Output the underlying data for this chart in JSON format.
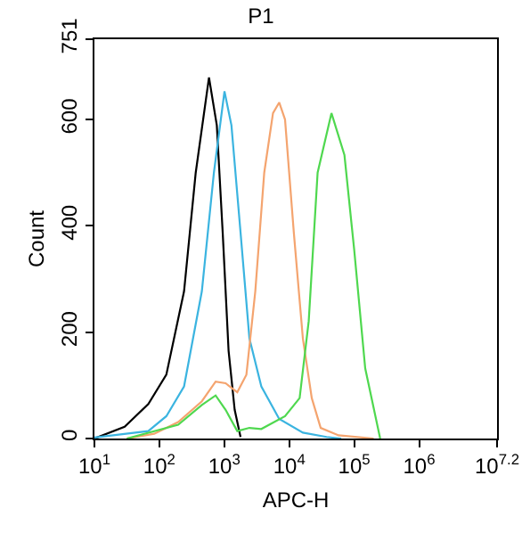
{
  "chart_data": {
    "type": "line",
    "title": "P1",
    "xlabel": "APC-H",
    "ylabel": "Count",
    "log": "x",
    "grid": false,
    "marker": "none",
    "line_style": "solid",
    "xlim": [
      10,
      15848932
    ],
    "xticks": [
      {
        "value": 10,
        "label": "10$^{1}$"
      },
      {
        "value": 100,
        "label": "10$^{2}$"
      },
      {
        "value": 1000,
        "label": "10$^{3}$"
      },
      {
        "value": 10000,
        "label": "10$^{4}$"
      },
      {
        "value": 100000,
        "label": "10$^{5}$"
      },
      {
        "value": 1000000,
        "label": "10$^{6}$"
      },
      {
        "value": 15848932,
        "label": "10$^{7.2}$"
      }
    ],
    "ylim": [
      0,
      751
    ],
    "yticks": [
      0,
      200,
      400,
      600,
      751
    ],
    "series": [
      {
        "color": "#000000",
        "x": [
          10,
          29.2,
          67.6,
          128,
          240,
          363,
          581,
          767,
          944,
          1164,
          1445,
          1778
        ],
        "values": [
          0,
          22,
          65,
          120,
          277,
          500,
          679,
          589,
          388,
          165,
          54,
          3
        ]
      },
      {
        "color": "#3bb4e0",
        "x": [
          10,
          67.6,
          128,
          240,
          451,
          692,
          1007,
          1288,
          1778,
          2438,
          3715,
          7000,
          16220,
          37580,
          63100
        ],
        "values": [
          2,
          14,
          42,
          98,
          277,
          500,
          653,
          589,
          388,
          188,
          98,
          37,
          11,
          3,
          0
        ]
      },
      {
        "color": "#f4a46f",
        "x": [
          31.6,
          83.2,
          195,
          451,
          735,
          1047,
          1585,
          2188,
          3000,
          4121,
          5623,
          7000,
          8610,
          11750,
          16220,
          22230,
          30480,
          57540,
          199500
        ],
        "values": [
          0,
          9,
          31,
          70,
          107,
          104,
          87,
          120,
          277,
          500,
          612,
          632,
          600,
          388,
          188,
          76,
          20,
          6,
          0
        ]
      },
      {
        "color": "#4fd84f",
        "x": [
          31.6,
          195,
          451,
          735,
          1047,
          1585,
          2438,
          3715,
          8610,
          14450,
          19950,
          27350,
          44670,
          70790,
          100000,
          147900,
          251200
        ],
        "values": [
          0,
          26,
          63,
          81,
          54,
          14,
          20,
          18,
          42,
          76,
          221,
          500,
          612,
          533,
          355,
          132,
          0
        ]
      }
    ]
  }
}
